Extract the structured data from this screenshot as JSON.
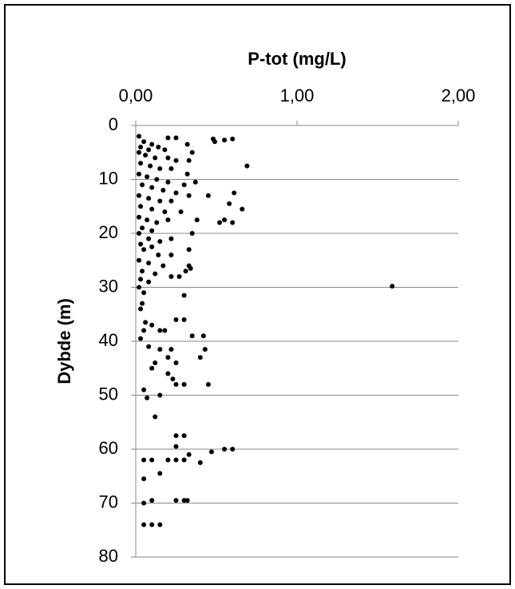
{
  "chart_data": {
    "type": "scatter",
    "x_axis_label": "P-tot (mg/L)",
    "y_axis_label": "Dybde (m)",
    "color": "#000000",
    "x": [
      0.02,
      0.05,
      0.1,
      0.03,
      0.08,
      0.14,
      0.02,
      0.06,
      0.12,
      0.2,
      0.25,
      0.03,
      0.09,
      0.15,
      0.22,
      0.02,
      0.07,
      0.13,
      0.2,
      0.04,
      0.1,
      0.17,
      0.25,
      0.02,
      0.08,
      0.15,
      0.22,
      0.03,
      0.1,
      0.18,
      0.02,
      0.07,
      0.13,
      0.2,
      0.04,
      0.1,
      0.02,
      0.08,
      0.15,
      0.22,
      0.03,
      0.1,
      0.05,
      0.14,
      0.22,
      0.02,
      0.08,
      0.17,
      0.04,
      0.12,
      0.22,
      0.03,
      0.08,
      0.02,
      0.05,
      0.04,
      0.03,
      0.1,
      0.15,
      0.05,
      0.03,
      0.08,
      0.18,
      0.06,
      1.59,
      0.69,
      0.6,
      0.55,
      0.48,
      0.49,
      0.61,
      0.66,
      0.58,
      0.6,
      0.55,
      0.52,
      0.38,
      0.45,
      0.32,
      0.25,
      0.2,
      0.18,
      0.35,
      0.33,
      0.32,
      0.37,
      0.3,
      0.33,
      0.28,
      0.35,
      0.33,
      0.33,
      0.34,
      0.27,
      0.31,
      0.3,
      0.25,
      0.3,
      0.35,
      0.42,
      0.43,
      0.4,
      0.45,
      0.3,
      0.25,
      0.23,
      0.2,
      0.25,
      0.2,
      0.22,
      0.15,
      0.12,
      0.1,
      0.05,
      0.07,
      0.15,
      0.12,
      0.25,
      0.3,
      0.25,
      0.33,
      0.47,
      0.55,
      0.6,
      0.3,
      0.4,
      0.25,
      0.2,
      0.1,
      0.05,
      0.15,
      0.05,
      0.1,
      0.25,
      0.3,
      0.32,
      0.05,
      0.1,
      0.05,
      0.15
    ],
    "values": [
      2,
      3,
      3.5,
      4,
      4.5,
      4,
      5,
      5.5,
      6,
      6,
      6.5,
      7,
      7.5,
      8,
      8,
      9,
      9.5,
      10,
      10.5,
      11,
      11.5,
      12,
      12.5,
      13,
      13.5,
      14,
      14,
      15,
      15.5,
      16,
      17,
      17.5,
      18,
      17.5,
      19,
      19.5,
      20,
      21,
      21.5,
      21,
      22,
      22.5,
      23,
      24,
      24,
      25,
      25.5,
      26,
      27,
      27.5,
      28,
      28.5,
      29,
      30,
      31,
      33,
      34,
      37,
      38,
      38,
      39.5,
      41,
      38,
      36.5,
      29.8,
      7.5,
      2.5,
      2.7,
      2.5,
      3,
      12.5,
      15.5,
      14.5,
      18,
      17.5,
      18,
      17.5,
      13,
      3.5,
      2.3,
      2.3,
      4.5,
      5,
      6.5,
      9,
      10.5,
      11,
      13,
      16,
      20,
      23,
      26,
      26.5,
      28,
      27,
      31.5,
      36,
      36,
      39,
      39,
      41.5,
      43,
      48,
      48,
      48,
      47,
      46,
      44,
      43,
      41.5,
      41.5,
      44,
      45,
      49,
      50.5,
      50,
      54,
      57.5,
      57.5,
      59.5,
      61,
      60.5,
      60,
      60,
      62,
      62.5,
      62,
      62,
      62,
      62,
      64.5,
      65.5,
      69.5,
      69.5,
      69.5,
      69.5,
      70,
      74,
      74,
      74
    ],
    "xlim": [
      0,
      2
    ],
    "xticks": [
      {
        "value": 0,
        "label": "0,00"
      },
      {
        "value": 1,
        "label": "1,00"
      },
      {
        "value": 2,
        "label": "2,00"
      }
    ],
    "ylim": [
      0,
      80
    ],
    "yticks": [
      0,
      10,
      20,
      30,
      40,
      50,
      60,
      70,
      80
    ],
    "y_inverted": true,
    "x_axis_position": "top",
    "grid": true
  }
}
